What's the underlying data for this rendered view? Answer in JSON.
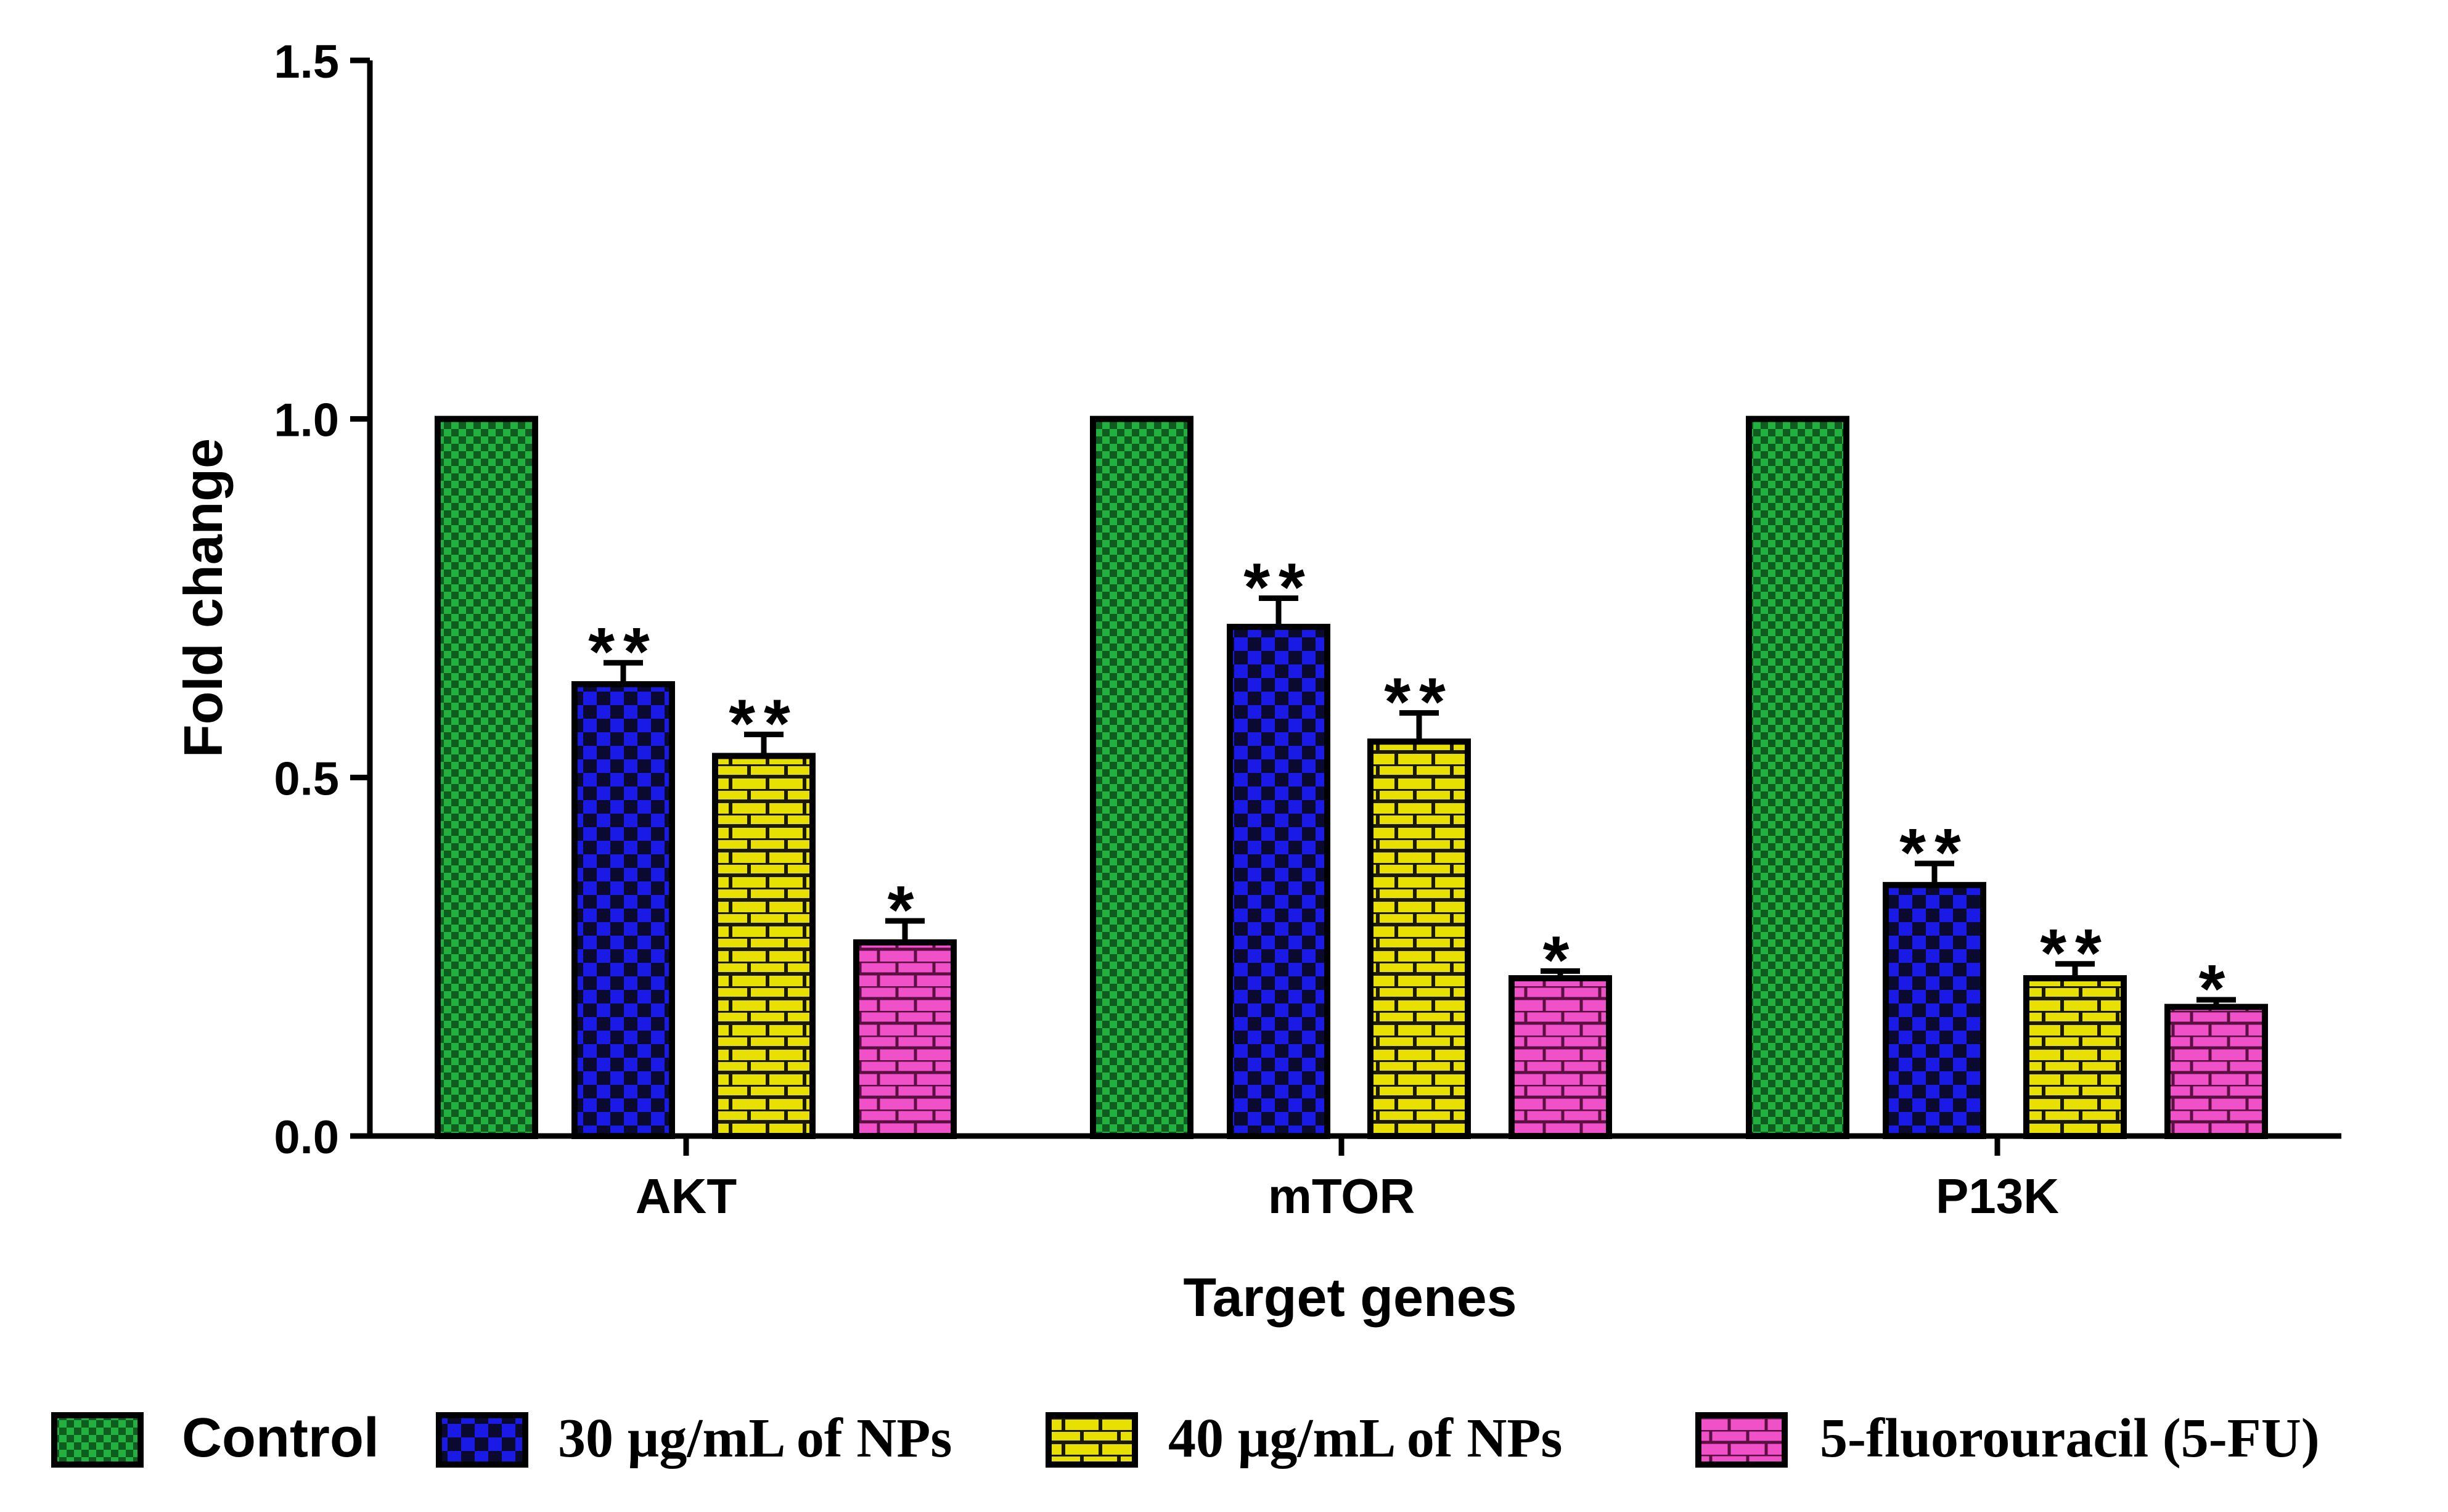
{
  "chart_data": {
    "type": "bar",
    "title": "",
    "xlabel": "Target genes",
    "ylabel": "Fold change",
    "ylim": [
      0,
      1.5
    ],
    "yticks": [
      "0.0",
      "0.5",
      "1.0",
      "1.5"
    ],
    "categories": [
      "AKT",
      "mTOR",
      "P13K"
    ],
    "series": [
      {
        "name": "Control",
        "values": [
          1.0,
          1.0,
          1.0
        ],
        "errors": [
          0,
          0,
          0
        ],
        "significance": [
          "",
          "",
          ""
        ],
        "color": "#1f9e3a",
        "pattern": "checker-fine"
      },
      {
        "name": "30 µg/mL of NPs",
        "values": [
          0.63,
          0.71,
          0.35
        ],
        "errors": [
          0.03,
          0.04,
          0.03
        ],
        "significance": [
          "**",
          "**",
          "**"
        ],
        "color": "#1a1ae6",
        "pattern": "checker"
      },
      {
        "name": "40 µg/mL of NPs",
        "values": [
          0.53,
          0.55,
          0.22
        ],
        "errors": [
          0.03,
          0.04,
          0.02
        ],
        "significance": [
          "**",
          "**",
          "**"
        ],
        "color": "#e8e000",
        "pattern": "brick"
      },
      {
        "name": "5-fluorouracil (5-FU)",
        "values": [
          0.27,
          0.22,
          0.18
        ],
        "errors": [
          0.03,
          0.01,
          0.01
        ],
        "significance": [
          "*",
          "*",
          "*"
        ],
        "color": "#f050c8",
        "pattern": "brick"
      }
    ],
    "legend": "bottom"
  }
}
